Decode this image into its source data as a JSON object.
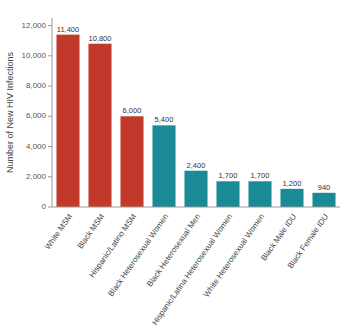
{
  "chart_data": {
    "type": "bar",
    "categories": [
      "White MSM",
      "Black MSM",
      "Hispanic/Latino MSM",
      "Black Heterosexual Women",
      "Black Heterosexual Men",
      "Hispanic/Latina Heterosexual Women",
      "White Heterosexual Women",
      "Black Male IDU",
      "Black Female IDU"
    ],
    "values": [
      11400,
      10800,
      6000,
      5400,
      2400,
      1700,
      1700,
      1200,
      940
    ],
    "value_labels": [
      "11,400",
      "10,800",
      "6,000",
      "5,400",
      "2,400",
      "1,700",
      "1,700",
      "1,200",
      "940"
    ],
    "colors": [
      "#C1392B",
      "#C1392B",
      "#C1392B",
      "#1A8A96",
      "#1A8A96",
      "#1A8A96",
      "#1A8A96",
      "#1A8A96",
      "#1A8A96"
    ],
    "ylabel": "Number of New HIV Infections",
    "ylim": [
      0,
      12500
    ],
    "yticks": [
      0,
      {
        "value": 2000,
        "label": "2,000"
      },
      {
        "value": 4000,
        "label": "4,000"
      },
      {
        "value": 6000,
        "label": "6,000"
      },
      {
        "value": 8000,
        "label": "8,000"
      },
      {
        "value": 10000,
        "label": "10,000"
      },
      {
        "value": 12000,
        "label": "12,000"
      }
    ],
    "data_labels": true,
    "grid": false
  }
}
